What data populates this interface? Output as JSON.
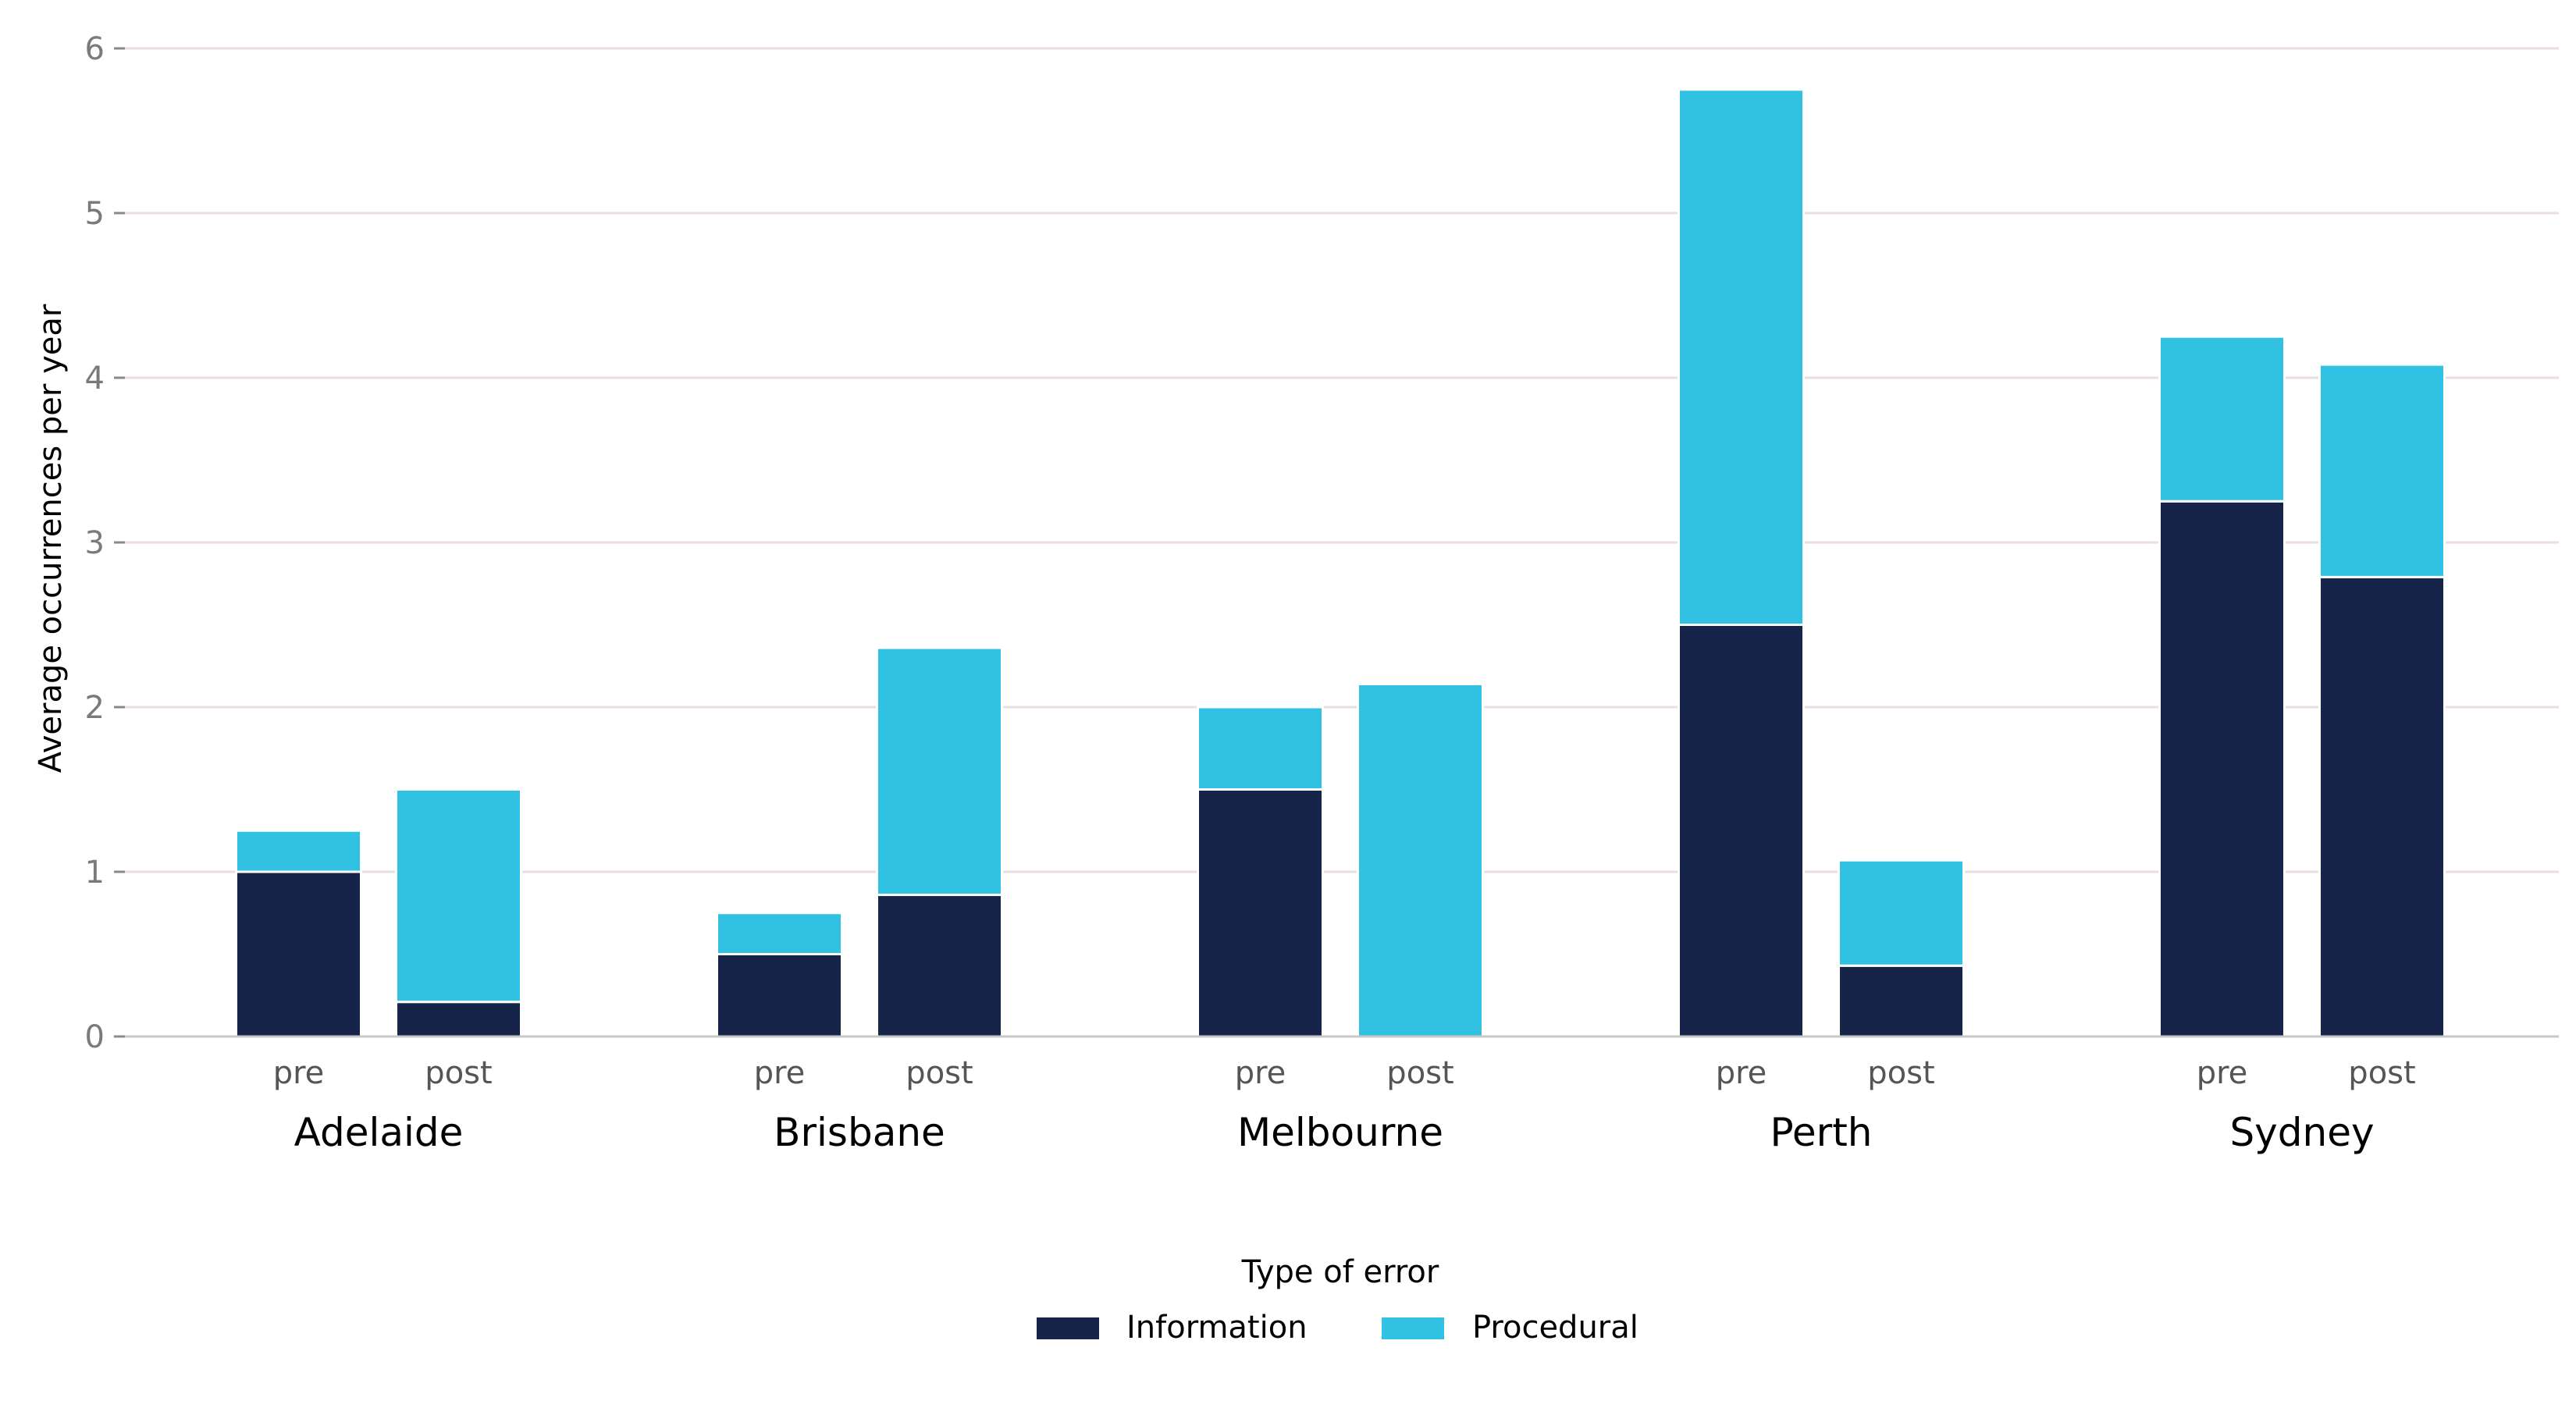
{
  "chart_data": {
    "type": "bar",
    "stacked": true,
    "ylabel": "Average occurrences per year",
    "ylim": [
      0,
      6
    ],
    "yticks": [
      0,
      1,
      2,
      3,
      4,
      5,
      6
    ],
    "grid": "horizontal",
    "legend": {
      "title": "Type of error",
      "placement": "bottom-center"
    },
    "groups": [
      "Adelaide",
      "Brisbane",
      "Melbourne",
      "Perth",
      "Sydney"
    ],
    "phases": [
      "pre",
      "post"
    ],
    "series": [
      {
        "name": "Information",
        "color": "#16244a",
        "values": [
          [
            1.0,
            0.21
          ],
          [
            0.5,
            0.86
          ],
          [
            1.5,
            0.0
          ],
          [
            2.5,
            0.43
          ],
          [
            3.25,
            2.79
          ]
        ]
      },
      {
        "name": "Procedural",
        "color": "#31c1e3",
        "values": [
          [
            0.25,
            1.29
          ],
          [
            0.25,
            1.5
          ],
          [
            0.5,
            2.14
          ],
          [
            3.25,
            0.64
          ],
          [
            1.0,
            1.29
          ]
        ]
      }
    ]
  }
}
